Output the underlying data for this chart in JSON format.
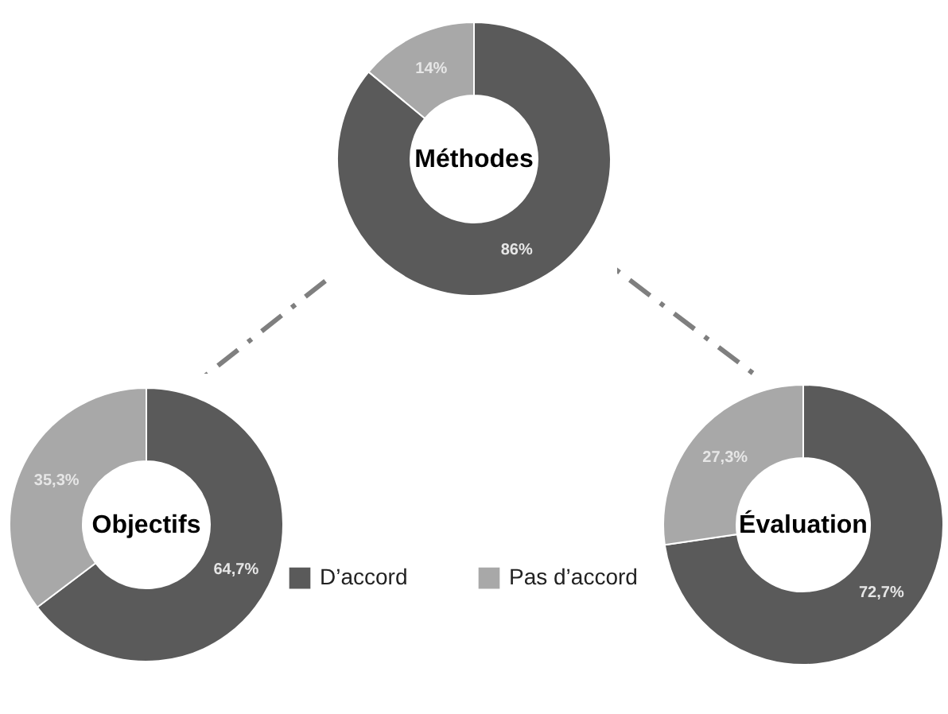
{
  "chart_data": [
    {
      "type": "donut",
      "title": "Méthodes",
      "categories": [
        null,
        null
      ],
      "values": [
        86,
        14
      ],
      "colors": [
        "#5a5a5a",
        "#a8a8a8"
      ],
      "value_labels": [
        "86%",
        "14%"
      ]
    },
    {
      "type": "donut",
      "title": "Objectifs",
      "categories": [
        "D’accord",
        "Pas d’accord"
      ],
      "values": [
        64.7,
        35.3
      ],
      "colors": [
        "#5a5a5a",
        "#a8a8a8"
      ],
      "value_labels": [
        "64,7%",
        "35,3%"
      ],
      "legend": "right"
    },
    {
      "type": "donut",
      "title": "Évaluation",
      "categories": [
        null,
        null
      ],
      "values": [
        72.7,
        27.3
      ],
      "colors": [
        "#5a5a5a",
        "#a8a8a8"
      ],
      "value_labels": [
        "72,7%",
        "27,3%"
      ]
    }
  ]
}
